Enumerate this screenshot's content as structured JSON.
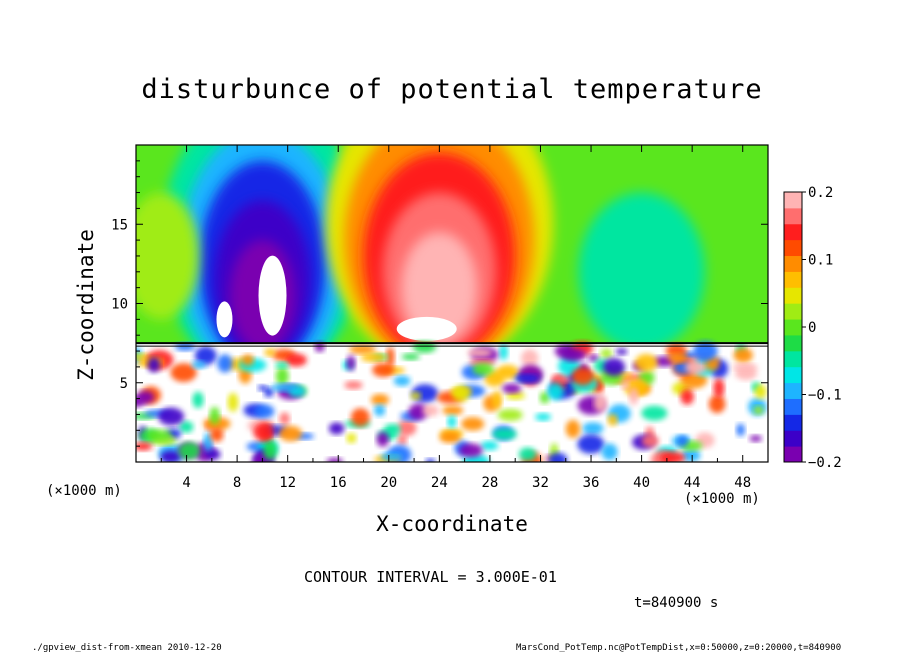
{
  "chart_data": {
    "type": "heatmap",
    "title": "disturbunce of potential temperature",
    "xlabel": "X-coordinate",
    "ylabel": "Z-coordinate",
    "x_unit_label": "(×1000 m)",
    "y_unit_label": "(×1000 m)",
    "xlim": [
      0,
      50
    ],
    "ylim": [
      0,
      20
    ],
    "x_ticks": [
      4,
      8,
      12,
      16,
      20,
      24,
      28,
      32,
      36,
      40,
      44,
      48
    ],
    "y_ticks": [
      5,
      10,
      15
    ],
    "colorbar": {
      "range": [
        -0.2,
        0.2
      ],
      "tick_values": [
        0.2,
        0.1,
        0,
        -0.1,
        -0.2
      ],
      "tick_labels": [
        "0.2",
        "0.1",
        "0",
        "−0.1",
        "−0.2"
      ],
      "colors_low_to_high": [
        "#7a00b0",
        "#3c00c8",
        "#1428e6",
        "#1e6eff",
        "#1eb4ff",
        "#00e6e6",
        "#00e6a0",
        "#1edc46",
        "#5ae61e",
        "#a0ec14",
        "#e6e600",
        "#ffbe00",
        "#ff8c00",
        "#ff4b00",
        "#ff1e1e",
        "#ff6e6e",
        "#ffb4b4"
      ]
    },
    "features": [
      {
        "kind": "negative-column",
        "x_center": 10,
        "z_range": [
          7.5,
          20
        ],
        "value": -0.2
      },
      {
        "kind": "positive-column",
        "x_center": 24,
        "z_range": [
          7.5,
          20
        ],
        "value": 0.2
      },
      {
        "kind": "boundary-layer",
        "z_top": 7.5,
        "note": "mixed small-scale values"
      }
    ]
  },
  "annotations": {
    "contour_interval": "CONTOUR INTERVAL = 3.000E-01",
    "time": "t=840900 s",
    "footer_left": "./gpview_dist-from-xmean  2010-12-20",
    "footer_right": "MarsCond_PotTemp.nc@PotTempDist,x=0:50000,z=0:20000,t=840900"
  }
}
